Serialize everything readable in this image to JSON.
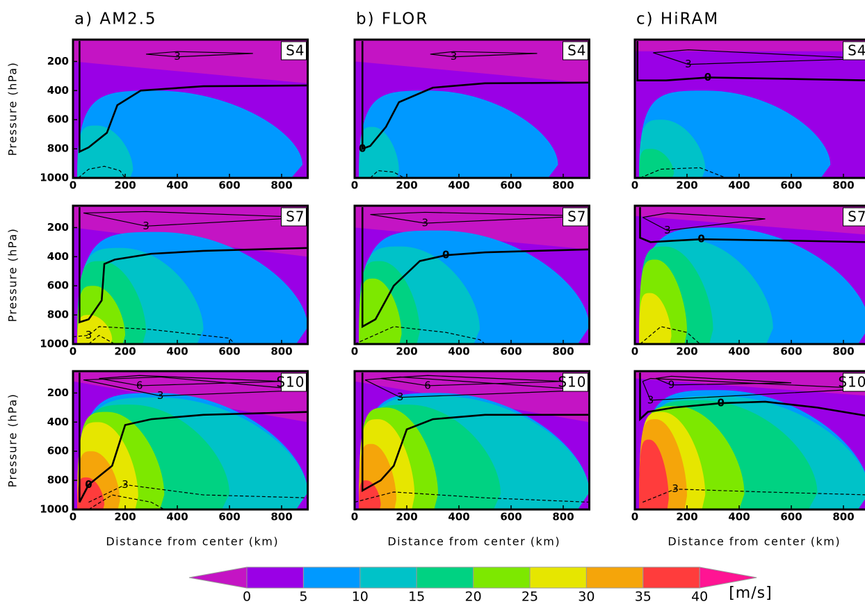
{
  "chart_data": [
    {
      "type": "contour",
      "title": "a) AM2.5",
      "label": "S4",
      "ylabel": "Pressure (hPa)",
      "xlim": [
        0,
        900
      ],
      "ylim": [
        1000,
        50
      ],
      "xticks": [
        0,
        200,
        400,
        600,
        800
      ],
      "yticks": [
        200,
        400,
        600,
        800,
        1000
      ],
      "negative": {
        "p_left": 200,
        "p_right": 350
      },
      "fills": [
        {
          "level": 5,
          "r": 880,
          "top": 400
        },
        {
          "level": 10,
          "r": 230,
          "top": 640
        }
      ],
      "contours": [
        {
          "level": 0,
          "bold": true,
          "x": [
            25,
            25,
            60,
            130,
            170,
            260,
            500,
            900
          ],
          "p": [
            60,
            820,
            790,
            690,
            500,
            400,
            370,
            365
          ]
        },
        {
          "level": 3,
          "x": [
            280,
            400,
            690,
            400,
            280
          ],
          "p": [
            150,
            132,
            145,
            168,
            150
          ],
          "label_at": 3
        },
        {
          "level": 3,
          "dashed": true,
          "x": [
            20,
            60,
            120,
            180,
            200
          ],
          "p": [
            1000,
            940,
            920,
            950,
            1000
          ]
        }
      ]
    },
    {
      "type": "contour",
      "title": "b) FLOR",
      "label": "S4",
      "xlim": [
        0,
        900
      ],
      "ylim": [
        1000,
        50
      ],
      "xticks": [
        0,
        200,
        400,
        600,
        800
      ],
      "negative": {
        "p_left": 200,
        "p_right": 350
      },
      "fills": [
        {
          "level": 5,
          "r": 780,
          "top": 400
        },
        {
          "level": 10,
          "r": 170,
          "top": 650
        }
      ],
      "contours": [
        {
          "level": 0,
          "bold": true,
          "x": [
            30,
            30,
            60,
            120,
            170,
            300,
            500,
            900
          ],
          "p": [
            60,
            800,
            780,
            650,
            480,
            380,
            350,
            345
          ],
          "label_at": 1
        },
        {
          "level": 3,
          "x": [
            290,
            380,
            700,
            380,
            290
          ],
          "p": [
            150,
            132,
            145,
            168,
            150
          ],
          "label_at": 3
        },
        {
          "level": 3,
          "dashed": true,
          "x": [
            60,
            90,
            150,
            190
          ],
          "p": [
            1000,
            950,
            960,
            1000
          ]
        }
      ]
    },
    {
      "type": "contour",
      "title": "c) HiRAM",
      "label": "S4",
      "xlim": [
        0,
        900
      ],
      "ylim": [
        1000,
        50
      ],
      "xticks": [
        0,
        200,
        400,
        600,
        800
      ],
      "negative": {
        "p_left": 130,
        "p_right": 130
      },
      "fills": [
        {
          "level": 5,
          "r": 750,
          "top": 400
        },
        {
          "level": 10,
          "r": 270,
          "top": 600
        },
        {
          "level": 15,
          "r": 150,
          "top": 800
        }
      ],
      "contours": [
        {
          "level": 0,
          "bold": true,
          "x": [
            10,
            10,
            120,
            280,
            600,
            900
          ],
          "p": [
            60,
            330,
            330,
            310,
            320,
            330
          ],
          "label_at": 3
        },
        {
          "level": 3,
          "x": [
            70,
            205,
            900,
            205,
            70
          ],
          "p": [
            140,
            120,
            180,
            220,
            140
          ],
          "label_at": 3
        },
        {
          "level": 3,
          "dashed": true,
          "x": [
            20,
            100,
            250,
            350
          ],
          "p": [
            1000,
            940,
            930,
            1000
          ]
        }
      ]
    },
    {
      "type": "contour",
      "label": "S7",
      "ylabel": "Pressure (hPa)",
      "xlim": [
        0,
        900
      ],
      "ylim": [
        1000,
        50
      ],
      "xticks": [
        0,
        200,
        400,
        600,
        800
      ],
      "yticks": [
        200,
        400,
        600,
        800,
        1000
      ],
      "negative": {
        "p_left": 200,
        "p_right": 400
      },
      "fills": [
        {
          "level": 5,
          "r": 900,
          "top": 230
        },
        {
          "level": 10,
          "r": 500,
          "top": 340
        },
        {
          "level": 15,
          "r": 280,
          "top": 430
        },
        {
          "level": 20,
          "r": 200,
          "top": 600
        },
        {
          "level": 25,
          "r": 150,
          "top": 800
        }
      ],
      "contours": [
        {
          "level": 0,
          "bold": true,
          "x": [
            25,
            25,
            60,
            110,
            120,
            160,
            300,
            500,
            900
          ],
          "p": [
            60,
            850,
            830,
            700,
            450,
            420,
            380,
            360,
            340
          ]
        },
        {
          "level": 3,
          "x": [
            40,
            280,
            900,
            280,
            40
          ],
          "p": [
            100,
            90,
            130,
            190,
            100
          ],
          "label_at": 3
        },
        {
          "level": 3,
          "dashed": true,
          "x": [
            0,
            60,
            100,
            300,
            600,
            620
          ],
          "p": [
            950,
            940,
            880,
            900,
            960,
            1000
          ],
          "label_at": 1
        },
        {
          "level": 6,
          "dashed": true,
          "x": [
            60,
            100,
            160
          ],
          "p": [
            1000,
            940,
            1000
          ]
        }
      ]
    },
    {
      "type": "contour",
      "label": "S7",
      "xlim": [
        0,
        900
      ],
      "ylim": [
        1000,
        50
      ],
      "xticks": [
        0,
        200,
        400,
        600,
        800
      ],
      "negative": {
        "p_left": 200,
        "p_right": 350
      },
      "fills": [
        {
          "level": 5,
          "r": 900,
          "top": 220
        },
        {
          "level": 10,
          "r": 480,
          "top": 330
        },
        {
          "level": 15,
          "r": 250,
          "top": 430
        },
        {
          "level": 20,
          "r": 180,
          "top": 550
        }
      ],
      "contours": [
        {
          "level": 0,
          "bold": true,
          "x": [
            30,
            30,
            80,
            150,
            250,
            350,
            500,
            900
          ],
          "p": [
            60,
            880,
            830,
            600,
            430,
            390,
            370,
            350
          ],
          "label_at": 5
        },
        {
          "level": 3,
          "x": [
            60,
            270,
            900,
            270,
            60
          ],
          "p": [
            110,
            95,
            120,
            170,
            110
          ],
          "label_at": 3
        },
        {
          "level": 3,
          "dashed": true,
          "x": [
            0,
            150,
            350,
            480,
            500
          ],
          "p": [
            1000,
            880,
            920,
            970,
            1000
          ]
        }
      ]
    },
    {
      "type": "contour",
      "label": "S7",
      "xlim": [
        0,
        900
      ],
      "ylim": [
        1000,
        50
      ],
      "xticks": [
        0,
        200,
        400,
        600,
        800
      ],
      "negative": {
        "p_left": 120,
        "p_right": 250
      },
      "fills": [
        {
          "level": 5,
          "r": 900,
          "top": 200
        },
        {
          "level": 10,
          "r": 530,
          "top": 280
        },
        {
          "level": 15,
          "r": 300,
          "top": 330
        },
        {
          "level": 20,
          "r": 200,
          "top": 420
        },
        {
          "level": 25,
          "r": 140,
          "top": 650
        }
      ],
      "contours": [
        {
          "level": 0,
          "bold": true,
          "x": [
            20,
            20,
            60,
            150,
            255,
            600,
            900
          ],
          "p": [
            60,
            270,
            300,
            290,
            280,
            290,
            300
          ],
          "label_at": 4
        },
        {
          "level": 3,
          "x": [
            30,
            125,
            500,
            125,
            30
          ],
          "p": [
            130,
            100,
            140,
            220,
            130
          ],
          "label_at": 3
        },
        {
          "level": 3,
          "dashed": true,
          "x": [
            20,
            100,
            200,
            250
          ],
          "p": [
            1000,
            880,
            920,
            1000
          ]
        }
      ]
    },
    {
      "type": "contour",
      "label": "S10",
      "ylabel": "Pressure (hPa)",
      "xlabel": "Distance from center (km)",
      "xlim": [
        0,
        900
      ],
      "ylim": [
        1000,
        50
      ],
      "xticks": [
        0,
        200,
        400,
        600,
        800
      ],
      "yticks": [
        200,
        400,
        600,
        800,
        1000
      ],
      "negative": {
        "p_left": 120,
        "p_right": 400
      },
      "fills": [
        {
          "level": 5,
          "r": 900,
          "top": 200
        },
        {
          "level": 10,
          "r": 900,
          "top": 230
        },
        {
          "level": 15,
          "r": 600,
          "top": 280
        },
        {
          "level": 20,
          "r": 350,
          "top": 330
        },
        {
          "level": 25,
          "r": 250,
          "top": 400
        },
        {
          "level": 30,
          "r": 180,
          "top": 600
        },
        {
          "level": 35,
          "r": 120,
          "top": 780
        }
      ],
      "contours": [
        {
          "level": 0,
          "bold": true,
          "x": [
            25,
            25,
            60,
            150,
            200,
            300,
            500,
            900
          ],
          "p": [
            60,
            950,
            830,
            700,
            420,
            380,
            350,
            330
          ],
          "label_at": 2
        },
        {
          "level": 6,
          "x": [
            100,
            255,
            800,
            255,
            100
          ],
          "p": [
            100,
            80,
            120,
            150,
            100
          ],
          "label_at": 3
        },
        {
          "level": 3,
          "x": [
            40,
            335,
            900,
            335,
            40
          ],
          "p": [
            110,
            90,
            180,
            220,
            110
          ],
          "label_at": 3
        },
        {
          "level": 3,
          "dashed": true,
          "x": [
            60,
            200,
            500,
            900
          ],
          "p": [
            950,
            830,
            900,
            920
          ],
          "label_at": 1
        },
        {
          "level": 6,
          "dashed": true,
          "x": [
            60,
            150,
            300,
            350
          ],
          "p": [
            1000,
            900,
            950,
            1000
          ]
        }
      ]
    },
    {
      "type": "contour",
      "label": "S10",
      "xlabel": "Distance from center (km)",
      "xlim": [
        0,
        900
      ],
      "ylim": [
        1000,
        50
      ],
      "xticks": [
        0,
        200,
        400,
        600,
        800
      ],
      "negative": {
        "p_left": 120,
        "p_right": 400
      },
      "fills": [
        {
          "level": 5,
          "r": 900,
          "top": 200
        },
        {
          "level": 10,
          "r": 900,
          "top": 220
        },
        {
          "level": 15,
          "r": 560,
          "top": 280
        },
        {
          "level": 20,
          "r": 320,
          "top": 300
        },
        {
          "level": 25,
          "r": 230,
          "top": 380
        },
        {
          "level": 30,
          "r": 160,
          "top": 550
        },
        {
          "level": 35,
          "r": 100,
          "top": 800
        }
      ],
      "contours": [
        {
          "level": 0,
          "bold": true,
          "x": [
            30,
            30,
            100,
            150,
            200,
            300,
            500,
            900
          ],
          "p": [
            60,
            870,
            800,
            700,
            450,
            380,
            350,
            350
          ]
        },
        {
          "level": 6,
          "x": [
            100,
            280,
            800,
            280,
            100
          ],
          "p": [
            100,
            80,
            120,
            150,
            100
          ],
          "label_at": 3
        },
        {
          "level": 3,
          "x": [
            40,
            175,
            900,
            175,
            40
          ],
          "p": [
            110,
            90,
            180,
            230,
            110
          ],
          "label_at": 3
        },
        {
          "level": 3,
          "dashed": true,
          "x": [
            0,
            150,
            500,
            900
          ],
          "p": [
            950,
            880,
            920,
            950
          ]
        }
      ]
    },
    {
      "type": "contour",
      "label": "S10",
      "xlabel": "Distance from center (km)",
      "xlim": [
        0,
        900
      ],
      "ylim": [
        1000,
        50
      ],
      "xticks": [
        0,
        200,
        400,
        600,
        800
      ],
      "negative": {
        "p_left": 100,
        "p_right": 220
      },
      "fills": [
        {
          "level": 5,
          "r": 900,
          "top": 180
        },
        {
          "level": 10,
          "r": 900,
          "top": 220
        },
        {
          "level": 15,
          "r": 700,
          "top": 250
        },
        {
          "level": 20,
          "r": 420,
          "top": 290
        },
        {
          "level": 25,
          "r": 270,
          "top": 330
        },
        {
          "level": 30,
          "r": 200,
          "top": 380
        },
        {
          "level": 35,
          "r": 130,
          "top": 520
        }
      ],
      "contours": [
        {
          "level": 0,
          "bold": true,
          "x": [
            20,
            20,
            50,
            150,
            330,
            500,
            700,
            900
          ],
          "p": [
            60,
            380,
            330,
            300,
            270,
            260,
            300,
            360
          ],
          "label_at": 4
        },
        {
          "level": 9,
          "x": [
            80,
            140,
            600,
            140,
            80
          ],
          "p": [
            100,
            85,
            130,
            145,
            100
          ],
          "label_at": 3
        },
        {
          "level": 3,
          "x": [
            30,
            60,
            900,
            60,
            30
          ],
          "p": [
            120,
            100,
            170,
            250,
            120
          ],
          "label_at": 3
        },
        {
          "level": 3,
          "dashed": true,
          "x": [
            30,
            155,
            500,
            900
          ],
          "p": [
            950,
            860,
            880,
            900
          ],
          "label_at": 1
        }
      ]
    }
  ],
  "colorbar": {
    "levels": [
      0,
      5,
      10,
      15,
      20,
      25,
      30,
      35,
      40
    ],
    "colors": [
      "#9a00e6",
      "#0099ff",
      "#00c2c8",
      "#00d282",
      "#7de800",
      "#e6e600",
      "#f5a50a",
      "#ff3c3c"
    ],
    "under": "#c414c4",
    "over": "#ff1493",
    "label": "[m/s]"
  }
}
